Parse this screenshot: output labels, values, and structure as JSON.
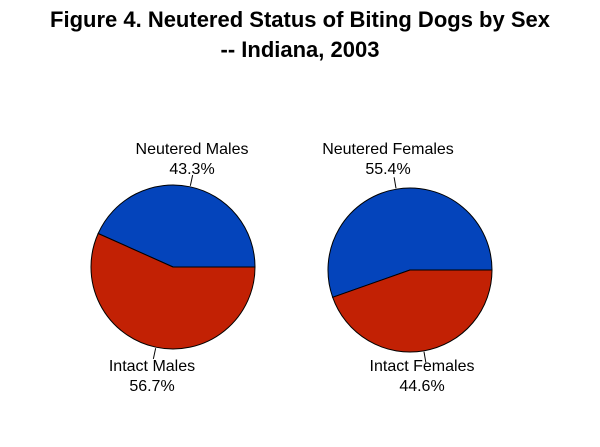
{
  "title": {
    "line1": "Figure 4. Neutered Status of Biting Dogs by Sex",
    "line2": "-- Indiana, 2003"
  },
  "colors": {
    "neutered_blue": "#0444BB",
    "intact_red": "#C22104",
    "outline": "#000000",
    "background": "#FFFFFF",
    "text": "#000000"
  },
  "chart_data": [
    {
      "type": "pie",
      "name": "biting-dogs-males",
      "start_angle_deg": 0,
      "direction": "counterclockwise",
      "legend": "none",
      "labels_position": "outside-with-leader-ticks",
      "slices": [
        {
          "label": "Neutered Males",
          "value": 43.3,
          "pct_label": "43.3%",
          "color": "#0444BB"
        },
        {
          "label": "Intact Males",
          "value": 56.7,
          "pct_label": "56.7%",
          "color": "#C22104"
        }
      ]
    },
    {
      "type": "pie",
      "name": "biting-dogs-females",
      "start_angle_deg": 0,
      "direction": "counterclockwise",
      "legend": "none",
      "labels_position": "outside-with-leader-ticks",
      "slices": [
        {
          "label": "Neutered Females",
          "value": 55.4,
          "pct_label": "55.4%",
          "color": "#0444BB"
        },
        {
          "label": "Intact Females",
          "value": 44.6,
          "pct_label": "44.6%",
          "color": "#C22104"
        }
      ]
    }
  ]
}
